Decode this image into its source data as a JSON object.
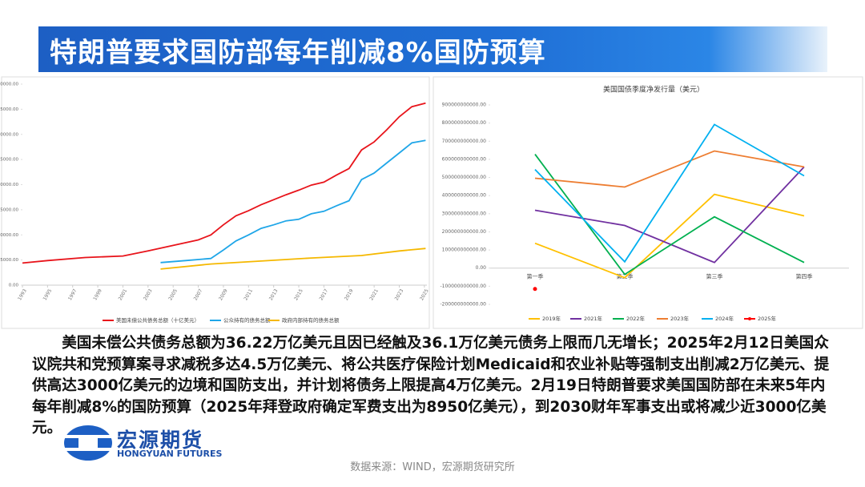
{
  "header": {
    "title": "特朗普要求国防部每年削减8%国防预算"
  },
  "body": {
    "text": "美国未偿公共债务总额为36.22万亿美元且因已经触及36.1万亿美元债务上限而几无增长；2025年2月12日美国众议院共和党预算案寻求减税多达4.5万亿美元、将公共医疗保险计划Medicaid和农业补贴等强制支出削减2万亿美元、提供高达3000亿美元的边境和国防支出，并计划将债务上限提高4万亿美元。2月19日特朗普要求美国国防部在未来5年内每年削减8%的国防预算（2025年拜登政府确定军费支出为8950亿美元），到2030财年军事支出或将减少近3000亿美元。"
  },
  "logo": {
    "name": "宏源期货",
    "english": "HONGYUAN FUTURES"
  },
  "source": "数据来源：WIND，宏源期货研究所",
  "chart_data": [
    {
      "type": "line",
      "legend": "bottom",
      "grid": false,
      "xlim": [
        1993,
        2025.2
      ],
      "xticks": [
        1993,
        1995,
        1997,
        1999,
        2001,
        2003,
        2005,
        2007,
        2009,
        2011,
        2013,
        2015,
        2017,
        2019,
        2021,
        2023,
        2025
      ],
      "ylim": [
        0,
        40000
      ],
      "yticks": [
        {
          "value": 0,
          "label": "0.00"
        },
        {
          "value": 5000,
          "label": "5000.00"
        },
        {
          "value": 10000,
          "label": "10000.00"
        },
        {
          "value": 15000,
          "label": "15000.00"
        },
        {
          "value": 20000,
          "label": "20000.00"
        },
        {
          "value": 25000,
          "label": "25000.00"
        },
        {
          "value": 30000,
          "label": "30000.00"
        },
        {
          "value": 35000,
          "label": "35000.00"
        },
        {
          "value": 40000,
          "label": "40000.00"
        }
      ],
      "series": [
        {
          "name": "美国未偿公共债务总额（十亿美元）",
          "color": "#e8141b",
          "x": [
            1993,
            1995,
            1998,
            2001,
            2003,
            2005,
            2007,
            2008,
            2009,
            2010,
            2011,
            2012,
            2013,
            2014,
            2015,
            2016,
            2017,
            2018,
            2019,
            2020,
            2021,
            2022,
            2023,
            2024,
            2025.1
          ],
          "values": [
            4400,
            4900,
            5500,
            5800,
            6800,
            7900,
            9000,
            10000,
            12000,
            13800,
            14800,
            16000,
            17000,
            18000,
            18900,
            19900,
            20500,
            21900,
            23200,
            26900,
            28500,
            30900,
            33500,
            35500,
            36200
          ]
        },
        {
          "name": "公众持有的债务总额",
          "color": "#1fa6e8",
          "x": [
            2004,
            2006,
            2008,
            2009,
            2010,
            2011,
            2012,
            2013,
            2014,
            2015,
            2016,
            2017,
            2018,
            2019,
            2020,
            2021,
            2022,
            2023,
            2024,
            2025.1
          ],
          "values": [
            4500,
            4900,
            5300,
            7000,
            8800,
            10000,
            11300,
            12000,
            12800,
            13100,
            14200,
            14700,
            15800,
            16800,
            21000,
            22300,
            24300,
            26300,
            28300,
            28800
          ]
        },
        {
          "name": "政府内部持有的债务总额",
          "color": "#f5b800",
          "x": [
            2004,
            2008,
            2012,
            2016,
            2020,
            2023,
            2025.1
          ],
          "values": [
            3200,
            4200,
            4800,
            5400,
            5900,
            6800,
            7300
          ]
        }
      ]
    },
    {
      "type": "line",
      "legend": "bottom",
      "grid": false,
      "title": "美国国债季度净发行量（美元）",
      "categories": [
        "第一季",
        "第二季",
        "第三季",
        "第四季"
      ],
      "ylim": [
        -200000000000,
        900000000000
      ],
      "yticks": [
        {
          "value": -200000000000,
          "label": "-200000000000.00"
        },
        {
          "value": -100000000000,
          "label": "-100000000000.00"
        },
        {
          "value": 0,
          "label": "0.00"
        },
        {
          "value": 100000000000,
          "label": "100000000000.00"
        },
        {
          "value": 200000000000,
          "label": "200000000000.00"
        },
        {
          "value": 300000000000,
          "label": "300000000000.00"
        },
        {
          "value": 400000000000,
          "label": "400000000000.00"
        },
        {
          "value": 500000000000,
          "label": "500000000000.00"
        },
        {
          "value": 600000000000,
          "label": "600000000000.00"
        },
        {
          "value": 700000000000,
          "label": "700000000000.00"
        },
        {
          "value": 800000000000,
          "label": "800000000000.00"
        },
        {
          "value": 900000000000,
          "label": "900000000000.00"
        }
      ],
      "series": [
        {
          "name": "2019年",
          "color": "#ffc000",
          "values": [
            137000000000,
            -53000000000,
            407000000000,
            288000000000
          ]
        },
        {
          "name": "2021年",
          "color": "#7030a0",
          "values": [
            319000000000,
            235000000000,
            31000000000,
            558000000000
          ]
        },
        {
          "name": "2022年",
          "color": "#00b050",
          "values": [
            628000000000,
            -35000000000,
            283000000000,
            31000000000
          ]
        },
        {
          "name": "2023年",
          "color": "#ed7d31",
          "values": [
            496000000000,
            447000000000,
            646000000000,
            558000000000
          ]
        },
        {
          "name": "2024年",
          "color": "#00b0f0",
          "values": [
            544000000000,
            35000000000,
            792000000000,
            509000000000
          ]
        },
        {
          "name": "2025年",
          "color": "#ff0000",
          "values": [
            -115000000000,
            null,
            null,
            null
          ]
        }
      ]
    }
  ]
}
